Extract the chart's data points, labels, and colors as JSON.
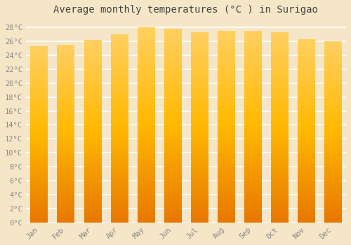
{
  "title": "Average monthly temperatures (°C ) in Surigao",
  "months": [
    "Jan",
    "Feb",
    "Mar",
    "Apr",
    "May",
    "Jun",
    "Jul",
    "Aug",
    "Sep",
    "Oct",
    "Nov",
    "Dec"
  ],
  "values": [
    25.3,
    25.5,
    26.2,
    27.0,
    28.0,
    27.8,
    27.3,
    27.5,
    27.5,
    27.3,
    26.3,
    26.0
  ],
  "ylim": [
    0,
    29
  ],
  "yticks": [
    0,
    2,
    4,
    6,
    8,
    10,
    12,
    14,
    16,
    18,
    20,
    22,
    24,
    26,
    28
  ],
  "bar_color_left": "#E87800",
  "bar_color_mid": "#FFB800",
  "bar_color_right": "#FFD060",
  "background_color": "#F5E6C8",
  "plot_bg_color": "#F5E6C8",
  "grid_color": "#FFFFFF",
  "title_fontsize": 10,
  "tick_fontsize": 7.5,
  "font_family": "monospace",
  "title_color": "#444444",
  "tick_color": "#888888"
}
